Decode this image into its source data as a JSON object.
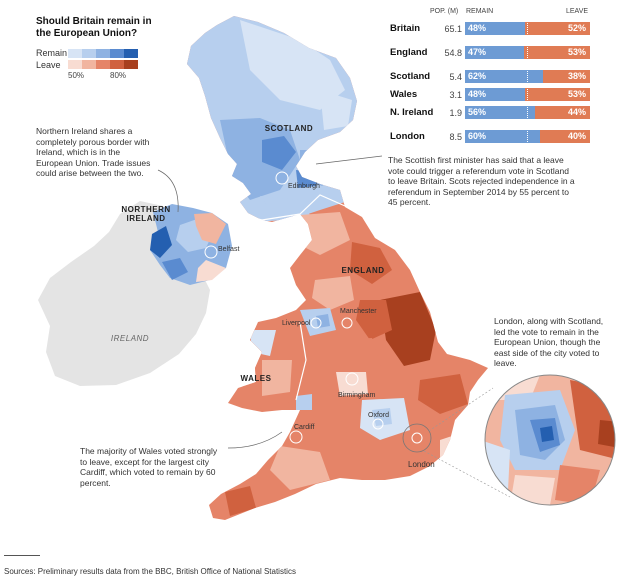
{
  "legend": {
    "title": "Should Britain remain in the European Union?",
    "remain_label": "Remain",
    "leave_label": "Leave",
    "tick_50": "50%",
    "tick_80": "80%",
    "remain_colors": [
      "#d7e4f5",
      "#b7cfee",
      "#8eb2e2",
      "#5a8bd0",
      "#245fb0"
    ],
    "leave_colors": [
      "#f8dcd2",
      "#f1b5a0",
      "#e58468",
      "#d0613f",
      "#a8401f"
    ]
  },
  "table": {
    "col_pop": "POP. (M)",
    "col_remain": "REMAIN",
    "col_leave": "LEAVE",
    "rows": [
      {
        "name": "Britain",
        "pop": "65.1",
        "remain": "48%",
        "leave": "52%",
        "remain_share": 0.48
      },
      {
        "name": "England",
        "pop": "54.8",
        "remain": "47%",
        "leave": "53%",
        "remain_share": 0.47
      },
      {
        "name": "Scotland",
        "pop": "5.4",
        "remain": "62%",
        "leave": "38%",
        "remain_share": 0.62
      },
      {
        "name": "Wales",
        "pop": "3.1",
        "remain": "48%",
        "leave": "53%",
        "remain_share": 0.48
      },
      {
        "name": "N. Ireland",
        "pop": "1.9",
        "remain": "56%",
        "leave": "44%",
        "remain_share": 0.56
      },
      {
        "name": "London",
        "pop": "8.5",
        "remain": "60%",
        "leave": "40%",
        "remain_share": 0.6
      }
    ]
  },
  "annotations": {
    "ni": "Northern Ireland shares a completely porous border with Ireland, which is in the European Union. Trade issues could arise between the two.",
    "scotland": "The Scottish first minister has said that a leave vote could trigger a referendum vote in Scotland to leave Britain. Scots rejected independence in a referendum in September 2014 by 55 percent to 45 percent.",
    "london": "London, along with Scotland, led the vote to remain in the European Union, though the east side of the city voted to leave.",
    "wales": "The majority of Wales voted strongly to leave, except for the largest city Cardiff, which voted to remain by 60 percent."
  },
  "regions": {
    "scotland": "SCOTLAND",
    "ni": "NORTHERN IRELAND",
    "england": "ENGLAND",
    "wales": "WALES",
    "ireland": "IRELAND"
  },
  "cities": {
    "edinburgh": "Edinburgh",
    "belfast": "Belfast",
    "manchester": "Manchester",
    "liverpool": "Liverpool",
    "birmingham": "Birmingham",
    "oxford": "Oxford",
    "cardiff": "Cardiff",
    "london": "London"
  },
  "source": "Sources: Preliminary results data from the BBC, British Office of National Statistics"
}
